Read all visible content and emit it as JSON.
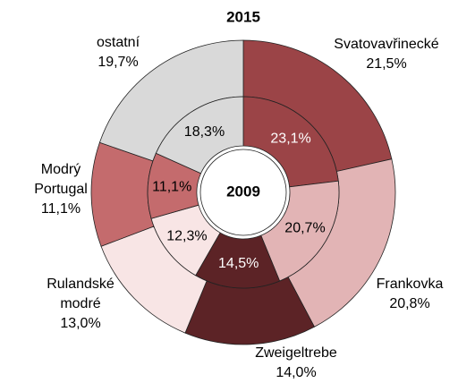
{
  "chart_data": {
    "type": "donut",
    "categories": [
      "Svatovavřinecké",
      "Frankovka",
      "Zweigeltrebe",
      "Rulandské modré",
      "Modrý Portugal",
      "ostatní"
    ],
    "colors": [
      "#9b4447",
      "#e2b4b5",
      "#5c2326",
      "#f8e5e5",
      "#c46b6d",
      "#d9d9d9"
    ],
    "series": [
      {
        "name": "2015",
        "values": [
          21.5,
          20.8,
          14.0,
          13.0,
          11.1,
          19.7
        ],
        "value_labels": [
          "21,5%",
          "20,8%",
          "14,0%",
          "13,0%",
          "11,1%",
          "19,7%"
        ]
      },
      {
        "name": "2009",
        "values": [
          23.1,
          20.7,
          14.5,
          12.3,
          11.1,
          18.3
        ],
        "value_labels": [
          "23,1%",
          "20,7%",
          "14,5%",
          "12,3%",
          "11,1%",
          "18,3%"
        ]
      }
    ]
  }
}
